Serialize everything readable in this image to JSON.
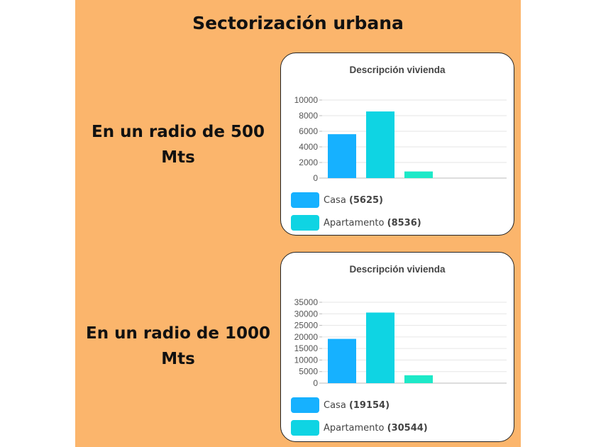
{
  "slide": {
    "title": "Sectorización urbana",
    "radius_500_label": "En un radio de 500 Mts",
    "radius_1000_label": "En un radio de 1000 Mts"
  },
  "colors": {
    "background": "#fbb56c",
    "casa": "#16b1ff",
    "apartamento": "#0fd4e3",
    "other": "#1de9c8"
  },
  "chart_data": [
    {
      "type": "bar",
      "title": "Descripción vivienda",
      "categories": [
        "Casa",
        "Apartamento",
        ""
      ],
      "values": [
        5625,
        8536,
        850
      ],
      "colors": [
        "#16b1ff",
        "#0fd4e3",
        "#1de9c8"
      ],
      "ylim": [
        0,
        10000
      ],
      "yticks": [
        0,
        2000,
        4000,
        6000,
        8000,
        10000
      ],
      "grid": true,
      "legend": [
        {
          "label": "Casa",
          "value": "(5625)"
        },
        {
          "label": "Apartamento",
          "value": "(8536)"
        }
      ]
    },
    {
      "type": "bar",
      "title": "Descripción vivienda",
      "categories": [
        "Casa",
        "Apartamento",
        ""
      ],
      "values": [
        19154,
        30544,
        3400
      ],
      "colors": [
        "#16b1ff",
        "#0fd4e3",
        "#1de9c8"
      ],
      "ylim": [
        0,
        35000
      ],
      "yticks": [
        0,
        5000,
        10000,
        15000,
        20000,
        25000,
        30000,
        35000
      ],
      "grid": true,
      "legend": [
        {
          "label": "Casa",
          "value": "(19154)"
        },
        {
          "label": "Apartamento",
          "value": "(30544)"
        }
      ]
    }
  ]
}
